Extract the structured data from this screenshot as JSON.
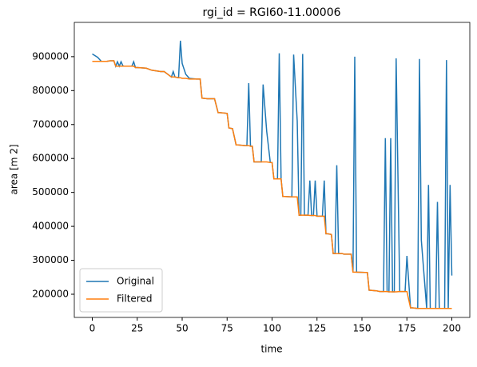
{
  "chart_data": {
    "type": "line",
    "title": "rgi_id = RGI60-11.00006",
    "x_label": "time",
    "y_label": "area [m 2]",
    "x": [
      0,
      3,
      5,
      8,
      10,
      12,
      13,
      14,
      15,
      16,
      17,
      18,
      22,
      23,
      24,
      25,
      30,
      33,
      38,
      40,
      44,
      45,
      46,
      48,
      49,
      50,
      52,
      54,
      58,
      60,
      61,
      64,
      65,
      68,
      70,
      71,
      75,
      76,
      78,
      80,
      81,
      85,
      86,
      87,
      88,
      89,
      90,
      94,
      95,
      97,
      99,
      100,
      101,
      103,
      104,
      105,
      106,
      107,
      111,
      112,
      114,
      115,
      116,
      117,
      118,
      120,
      121,
      122,
      123,
      124,
      125,
      126,
      127,
      128,
      129,
      130,
      131,
      133,
      134,
      135,
      136,
      137,
      139,
      140,
      144,
      145,
      146,
      147,
      153,
      154,
      158,
      160,
      162,
      163,
      164,
      165,
      166,
      167,
      168,
      169,
      171,
      172,
      174,
      175,
      177,
      178,
      181,
      182,
      183,
      186,
      187,
      188,
      191,
      192,
      193,
      196,
      197,
      198,
      199,
      200
    ],
    "series": [
      {
        "name": "Original",
        "color": "#1f77b4",
        "values": [
          908000,
          898000,
          886000,
          886000,
          888000,
          888000,
          872000,
          885000,
          872000,
          885000,
          873000,
          872000,
          872000,
          885000,
          868000,
          868000,
          866000,
          860000,
          856000,
          856000,
          840000,
          856000,
          840000,
          838000,
          947000,
          880000,
          848000,
          836000,
          834000,
          834000,
          778000,
          776000,
          776000,
          776000,
          735000,
          735000,
          733000,
          690000,
          688000,
          640000,
          640000,
          638000,
          638000,
          822000,
          636000,
          636000,
          590000,
          590000,
          818000,
          680000,
          588000,
          588000,
          540000,
          540000,
          910000,
          540000,
          488000,
          488000,
          487000,
          906000,
          710000,
          433000,
          433000,
          908000,
          433000,
          433000,
          535000,
          432000,
          432000,
          535000,
          430000,
          430000,
          430000,
          430000,
          535000,
          378000,
          378000,
          376000,
          320000,
          320000,
          580000,
          320000,
          320000,
          318000,
          318000,
          265000,
          900000,
          265000,
          264000,
          212000,
          210000,
          208000,
          208000,
          660000,
          208000,
          207000,
          660000,
          207000,
          207000,
          895000,
          208000,
          208000,
          208000,
          313000,
          160000,
          160000,
          158000,
          893000,
          360000,
          158000,
          522000,
          158000,
          158000,
          472000,
          158000,
          158000,
          890000,
          158000,
          522000,
          255000
        ]
      },
      {
        "name": "Filtered",
        "color": "#ff7f0e",
        "values": [
          886000,
          886000,
          886000,
          886000,
          888000,
          888000,
          872000,
          872000,
          872000,
          872000,
          872000,
          872000,
          872000,
          872000,
          868000,
          868000,
          866000,
          860000,
          856000,
          856000,
          840000,
          840000,
          840000,
          838000,
          838000,
          836000,
          836000,
          834000,
          834000,
          834000,
          778000,
          776000,
          776000,
          776000,
          735000,
          735000,
          733000,
          690000,
          688000,
          640000,
          640000,
          638000,
          638000,
          638000,
          636000,
          636000,
          590000,
          590000,
          590000,
          590000,
          588000,
          588000,
          540000,
          540000,
          540000,
          540000,
          488000,
          488000,
          487000,
          487000,
          487000,
          433000,
          433000,
          433000,
          433000,
          433000,
          432000,
          432000,
          432000,
          432000,
          430000,
          430000,
          430000,
          430000,
          430000,
          378000,
          378000,
          376000,
          320000,
          320000,
          320000,
          320000,
          320000,
          318000,
          318000,
          265000,
          265000,
          265000,
          264000,
          212000,
          210000,
          208000,
          208000,
          208000,
          208000,
          207000,
          207000,
          207000,
          207000,
          207000,
          208000,
          208000,
          208000,
          208000,
          160000,
          160000,
          158000,
          158000,
          158000,
          158000,
          158000,
          158000,
          158000,
          158000,
          158000,
          158000,
          158000,
          158000,
          158000,
          158000
        ]
      }
    ],
    "xlim": [
      -10,
      210
    ],
    "xticks": [
      0,
      25,
      50,
      75,
      100,
      125,
      150,
      175,
      200
    ],
    "ylim": [
      131650,
      1001000
    ],
    "yticks": [
      200000,
      300000,
      400000,
      500000,
      600000,
      700000,
      800000,
      900000
    ],
    "legend": "lower left"
  }
}
